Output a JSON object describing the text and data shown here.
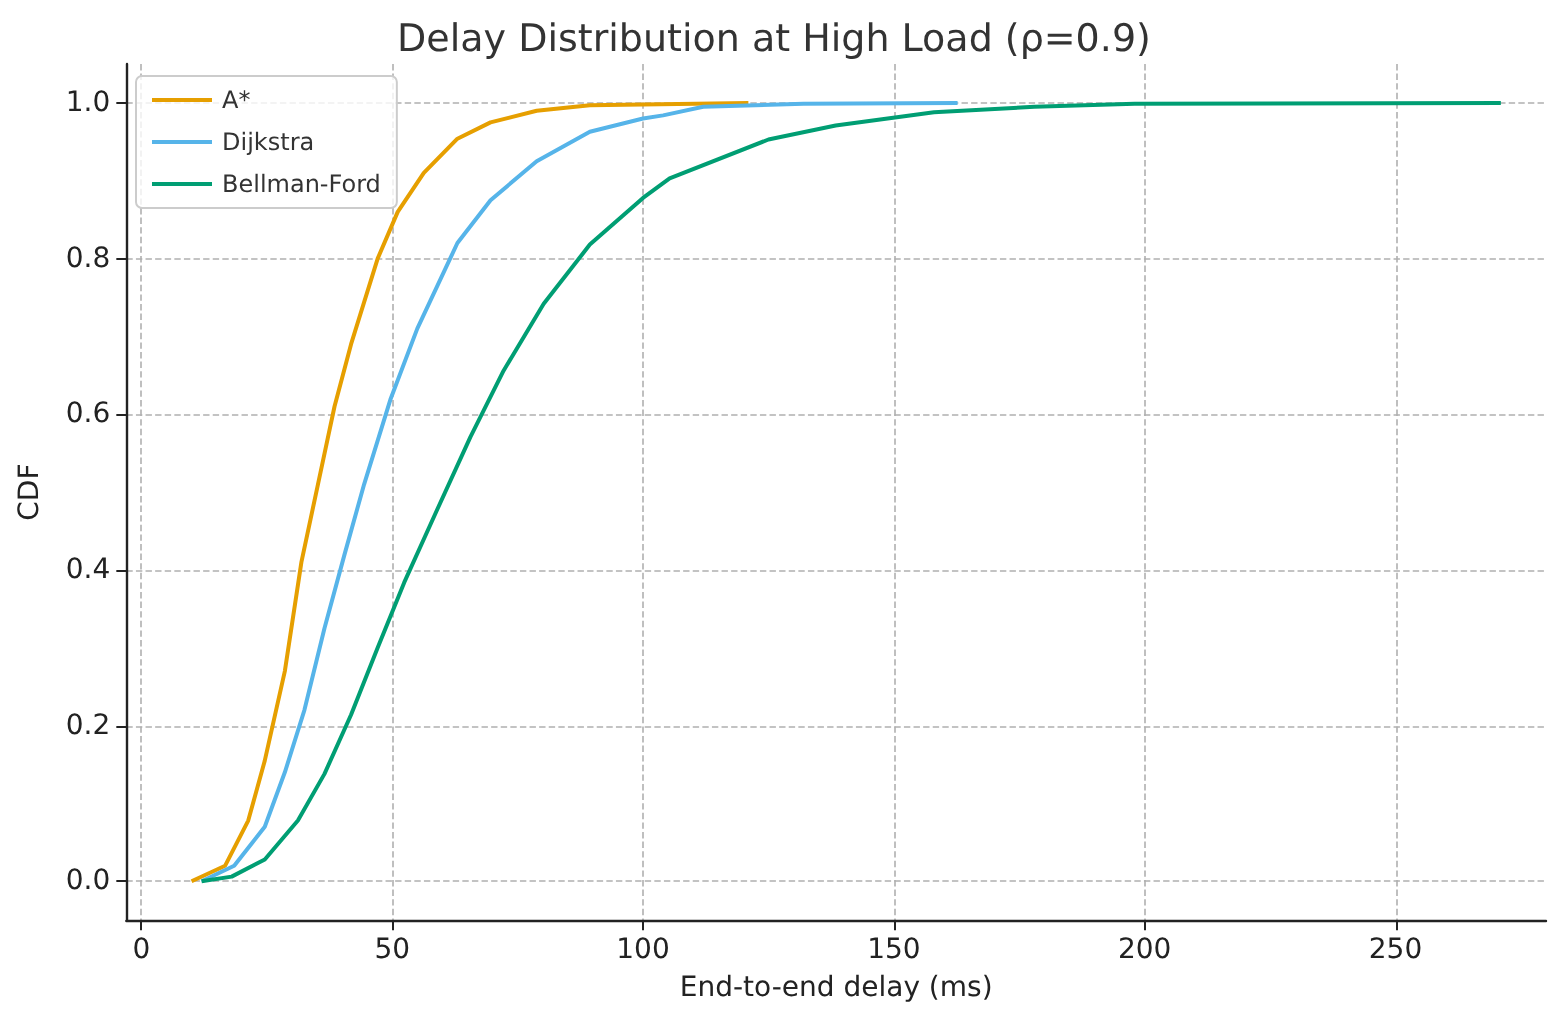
{
  "chart_data": {
    "type": "line",
    "title": "Delay Distribution at High Load (ρ=0.9)",
    "xlabel": "End-to-end delay (ms)",
    "ylabel": "CDF",
    "xlim": [
      -3,
      280
    ],
    "xticks": [
      0,
      50,
      100,
      150,
      200,
      250
    ],
    "ylim": [
      -0.05,
      1.05
    ],
    "yticks": [
      {
        "value": 0,
        "label": "0.0"
      },
      {
        "value": 0.2,
        "label": "0.2"
      },
      {
        "value": 0.4,
        "label": "0.4"
      },
      {
        "value": 0.6,
        "label": "0.6"
      },
      {
        "value": 0.8,
        "label": "0.8"
      },
      {
        "value": 1,
        "label": "1.0"
      }
    ],
    "grid": true,
    "legend": "top left",
    "marker": "none",
    "line_style": "solid",
    "series": [
      {
        "name": "A*",
        "color": "#e69f00",
        "x": [
          10,
          16.7,
          21.3,
          24.6,
          28.6,
          31.9,
          35.2,
          38.5,
          41.8,
          47.1,
          51.1,
          56.3,
          63,
          69.6,
          78.8,
          89.4,
          121
        ],
        "values": [
          0,
          0.02,
          0.078,
          0.155,
          0.27,
          0.41,
          0.51,
          0.61,
          0.69,
          0.8,
          0.86,
          0.91,
          0.954,
          0.975,
          0.99,
          0.997,
          1
        ]
      },
      {
        "name": "Dijkstra",
        "color": "#56b4e9",
        "x": [
          12,
          18.5,
          24.6,
          28.6,
          32.5,
          36.5,
          40.5,
          44.4,
          49.7,
          55,
          63,
          69.6,
          78.8,
          89.4,
          100,
          104,
          112,
          132,
          162.7
        ],
        "values": [
          0,
          0.02,
          0.07,
          0.14,
          0.22,
          0.325,
          0.42,
          0.51,
          0.62,
          0.71,
          0.82,
          0.875,
          0.925,
          0.963,
          0.98,
          0.984,
          0.995,
          0.999,
          1
        ]
      },
      {
        "name": "Bellman-Ford",
        "color": "#009e73",
        "x": [
          12,
          18,
          24.6,
          31.2,
          36.5,
          41.8,
          47.1,
          52.4,
          59,
          65.6,
          72.2,
          80.2,
          89.4,
          100,
          105.3,
          125,
          138.4,
          158,
          178,
          198,
          271
        ],
        "values": [
          0,
          0.006,
          0.028,
          0.078,
          0.138,
          0.214,
          0.3,
          0.384,
          0.478,
          0.571,
          0.656,
          0.742,
          0.818,
          0.878,
          0.903,
          0.953,
          0.971,
          0.988,
          0.995,
          0.999,
          1
        ]
      }
    ]
  }
}
